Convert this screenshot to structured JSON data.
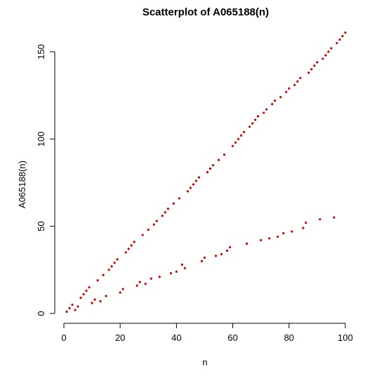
{
  "chart_data": {
    "type": "scatter",
    "title": "Scatterplot of A065188(n)",
    "xlabel": "n",
    "ylabel": "A065188(n)",
    "xlim": [
      0,
      100
    ],
    "ylim": [
      0,
      162
    ],
    "xticks": [
      0,
      20,
      40,
      60,
      80,
      100
    ],
    "yticks": [
      0,
      50,
      100,
      150
    ],
    "grid": false,
    "marker_color": "#cc0000",
    "series": [
      {
        "x": [
          1,
          2,
          3,
          4,
          5,
          6,
          7,
          8,
          9,
          10,
          11,
          12,
          13,
          14,
          15,
          16,
          17,
          18,
          19,
          20,
          21,
          22,
          23,
          24,
          25,
          26,
          27,
          28,
          29,
          30,
          31,
          32,
          33,
          34,
          35,
          36,
          37,
          38,
          39,
          40,
          41,
          42,
          43,
          44,
          45,
          46,
          47,
          48,
          49,
          50,
          51,
          52,
          53,
          54,
          55,
          56,
          57,
          58,
          59,
          60,
          61,
          62,
          63,
          64,
          65,
          66,
          67,
          68,
          69,
          70,
          71,
          72,
          73,
          74,
          75,
          76,
          77,
          78,
          79,
          80,
          81,
          82,
          83,
          84,
          85,
          86,
          87,
          88,
          89,
          90,
          91,
          92,
          93,
          94,
          95,
          96,
          97,
          98,
          99,
          100
        ],
        "y": [
          1,
          3,
          5,
          2,
          4,
          9,
          11,
          13,
          15,
          6,
          8,
          19,
          7,
          22,
          10,
          25,
          27,
          29,
          31,
          12,
          14,
          35,
          37,
          39,
          41,
          16,
          18,
          45,
          17,
          48,
          20,
          51,
          53,
          21,
          56,
          58,
          60,
          23,
          63,
          24,
          66,
          28,
          26,
          70,
          72,
          74,
          76,
          78,
          30,
          32,
          81,
          83,
          85,
          33,
          88,
          34,
          91,
          36,
          38,
          96,
          98,
          100,
          102,
          104,
          40,
          107,
          109,
          111,
          113,
          42,
          115,
          117,
          43,
          120,
          122,
          44,
          124,
          46,
          127,
          129,
          47,
          131,
          133,
          135,
          49,
          52,
          138,
          140,
          142,
          144,
          54,
          146,
          148,
          150,
          152,
          55,
          155,
          157,
          159,
          161
        ]
      }
    ]
  }
}
